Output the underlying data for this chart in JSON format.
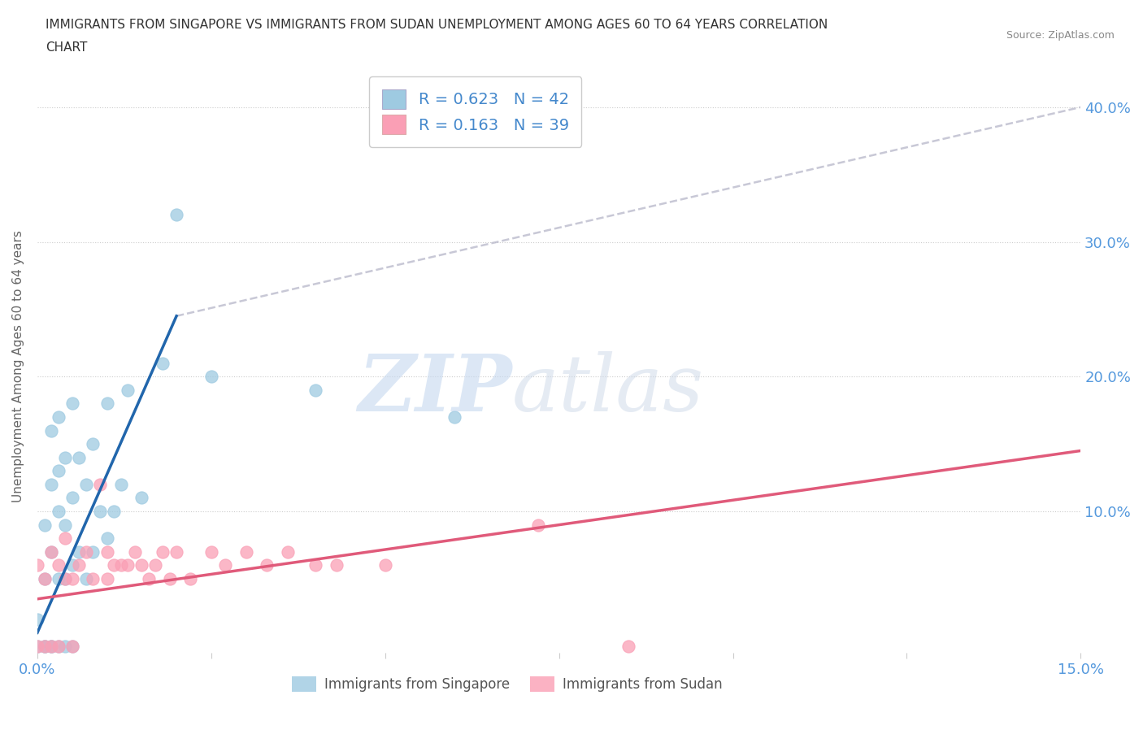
{
  "title_line1": "IMMIGRANTS FROM SINGAPORE VS IMMIGRANTS FROM SUDAN UNEMPLOYMENT AMONG AGES 60 TO 64 YEARS CORRELATION",
  "title_line2": "CHART",
  "source": "Source: ZipAtlas.com",
  "ylabel": "Unemployment Among Ages 60 to 64 years",
  "xlim": [
    0.0,
    0.15
  ],
  "ylim": [
    -0.005,
    0.42
  ],
  "xticks": [
    0.0,
    0.025,
    0.05,
    0.075,
    0.1,
    0.125,
    0.15
  ],
  "yticks": [
    0.0,
    0.1,
    0.2,
    0.3,
    0.4
  ],
  "yticklabels": [
    "",
    "10.0%",
    "20.0%",
    "30.0%",
    "40.0%"
  ],
  "singapore_color": "#9ecae1",
  "sudan_color": "#fa9fb5",
  "singapore_R": 0.623,
  "singapore_N": 42,
  "sudan_R": 0.163,
  "sudan_N": 39,
  "background_color": "#ffffff",
  "grid_color": "#dddddd",
  "singapore_points_x": [
    0.0,
    0.0,
    0.001,
    0.001,
    0.001,
    0.001,
    0.002,
    0.002,
    0.002,
    0.002,
    0.002,
    0.003,
    0.003,
    0.003,
    0.003,
    0.003,
    0.004,
    0.004,
    0.004,
    0.004,
    0.005,
    0.005,
    0.005,
    0.005,
    0.006,
    0.006,
    0.007,
    0.007,
    0.008,
    0.008,
    0.009,
    0.01,
    0.01,
    0.011,
    0.012,
    0.013,
    0.015,
    0.018,
    0.02,
    0.025,
    0.04,
    0.06
  ],
  "singapore_points_y": [
    0.0,
    0.02,
    0.0,
    0.0,
    0.05,
    0.09,
    0.0,
    0.0,
    0.07,
    0.12,
    0.16,
    0.0,
    0.05,
    0.1,
    0.13,
    0.17,
    0.0,
    0.05,
    0.09,
    0.14,
    0.0,
    0.06,
    0.11,
    0.18,
    0.07,
    0.14,
    0.05,
    0.12,
    0.07,
    0.15,
    0.1,
    0.08,
    0.18,
    0.1,
    0.12,
    0.19,
    0.11,
    0.21,
    0.32,
    0.2,
    0.19,
    0.17
  ],
  "sudan_points_x": [
    0.0,
    0.0,
    0.001,
    0.001,
    0.002,
    0.002,
    0.003,
    0.003,
    0.004,
    0.004,
    0.005,
    0.005,
    0.006,
    0.007,
    0.008,
    0.009,
    0.01,
    0.01,
    0.011,
    0.012,
    0.013,
    0.014,
    0.015,
    0.016,
    0.017,
    0.018,
    0.019,
    0.02,
    0.022,
    0.025,
    0.027,
    0.03,
    0.033,
    0.036,
    0.04,
    0.043,
    0.05,
    0.072,
    0.085
  ],
  "sudan_points_y": [
    0.0,
    0.06,
    0.0,
    0.05,
    0.0,
    0.07,
    0.0,
    0.06,
    0.05,
    0.08,
    0.0,
    0.05,
    0.06,
    0.07,
    0.05,
    0.12,
    0.05,
    0.07,
    0.06,
    0.06,
    0.06,
    0.07,
    0.06,
    0.05,
    0.06,
    0.07,
    0.05,
    0.07,
    0.05,
    0.07,
    0.06,
    0.07,
    0.06,
    0.07,
    0.06,
    0.06,
    0.06,
    0.09,
    0.0
  ],
  "singapore_trend_x": [
    0.0,
    0.02
  ],
  "singapore_trend_y": [
    0.01,
    0.245
  ],
  "sudan_trend_x": [
    0.0,
    0.15
  ],
  "sudan_trend_y": [
    0.035,
    0.145
  ],
  "dashed_trend_x": [
    0.02,
    0.15
  ],
  "dashed_trend_y": [
    0.245,
    0.4
  ]
}
